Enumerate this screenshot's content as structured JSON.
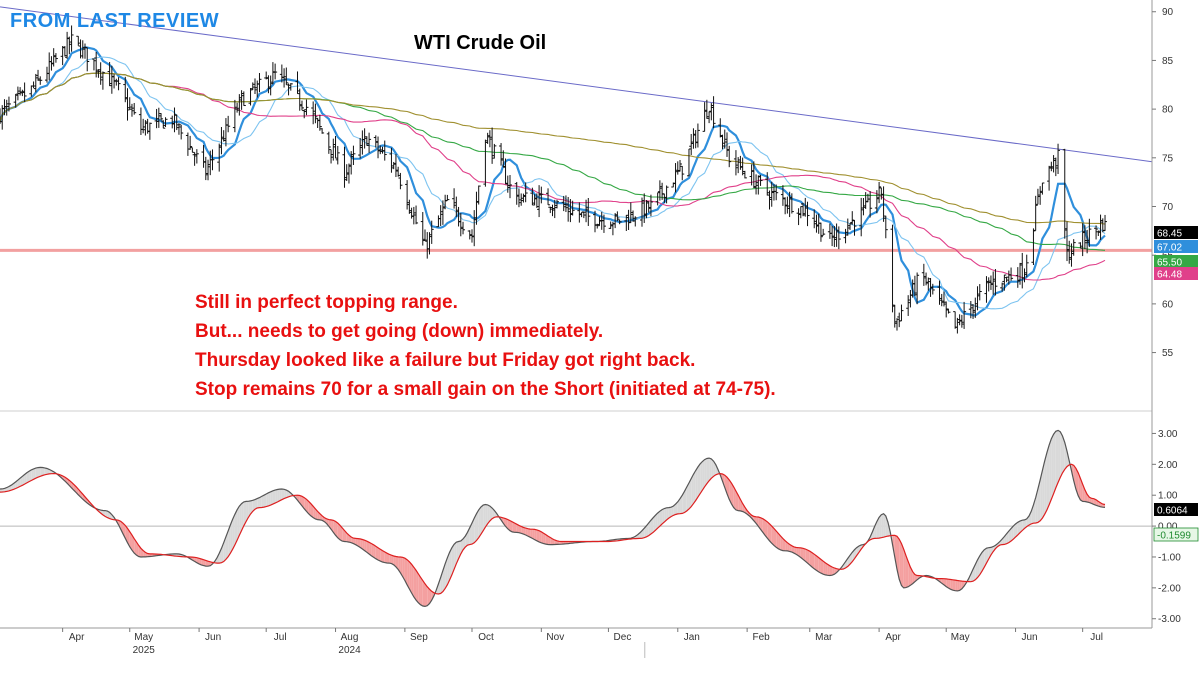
{
  "header": {
    "label": "FROM LAST REVIEW"
  },
  "commentary": [
    "Still in perfect topping range.",
    "But... needs to get going (down) immediately.",
    "Thursday looked like a failure but Friday got right back.",
    "Stop remains 70 for a small gain on the Short (initiated at 74-75)."
  ],
  "colors": {
    "header": "#1e88e5",
    "commentary": "#e81010",
    "bars": "#111111",
    "trendline": "#6a6ac8",
    "support": "#f2a0a0",
    "ma_fast": "#2f8fdc",
    "ma_light": "#7ec4f0",
    "ma_pink": "#e0408a",
    "ma_green": "#35a845",
    "ma_olive": "#a09030",
    "osc_fast": "#555555",
    "osc_slow": "#dd2020",
    "fill_up": "#d9d9d9",
    "fill_down": "#f4a0a0"
  },
  "chart_data": [
    {
      "type": "candlestick",
      "title": "WTI Crude Oil",
      "ylim": [
        49,
        91
      ],
      "y_ticks": [
        55,
        60,
        65,
        70,
        75,
        80,
        85,
        90
      ],
      "x_ticks": [
        "Apr",
        "May",
        "Jun",
        "Jul",
        "Aug",
        "Sep",
        "Oct",
        "Nov",
        "Dec",
        "Jan",
        "Feb",
        "Mar",
        "Apr",
        "May",
        "Jun",
        "Jul"
      ],
      "x_years": [
        {
          "label": "2024",
          "under": "Aug"
        },
        {
          "label": "2025",
          "under": "May"
        }
      ],
      "close_anchors": [
        {
          "date": "2024-03-04",
          "close": 79.5
        },
        {
          "date": "2024-03-18",
          "close": 82
        },
        {
          "date": "2024-04-05",
          "close": 87
        },
        {
          "date": "2024-04-12",
          "close": 85.5
        },
        {
          "date": "2024-04-26",
          "close": 82
        },
        {
          "date": "2024-05-06",
          "close": 78
        },
        {
          "date": "2024-05-20",
          "close": 79
        },
        {
          "date": "2024-06-04",
          "close": 73.5
        },
        {
          "date": "2024-06-20",
          "close": 81
        },
        {
          "date": "2024-07-05",
          "close": 83.5
        },
        {
          "date": "2024-07-20",
          "close": 80
        },
        {
          "date": "2024-08-05",
          "close": 73.5
        },
        {
          "date": "2024-08-15",
          "close": 77
        },
        {
          "date": "2024-08-28",
          "close": 74
        },
        {
          "date": "2024-09-10",
          "close": 65.8
        },
        {
          "date": "2024-09-20",
          "close": 70.5
        },
        {
          "date": "2024-10-01",
          "close": 67
        },
        {
          "date": "2024-10-07",
          "close": 77.5
        },
        {
          "date": "2024-10-20",
          "close": 71
        },
        {
          "date": "2024-11-05",
          "close": 70.5
        },
        {
          "date": "2024-11-20",
          "close": 69
        },
        {
          "date": "2024-12-05",
          "close": 68.5
        },
        {
          "date": "2024-12-20",
          "close": 70
        },
        {
          "date": "2025-01-03",
          "close": 74
        },
        {
          "date": "2025-01-15",
          "close": 80.5
        },
        {
          "date": "2025-01-24",
          "close": 75
        },
        {
          "date": "2025-02-10",
          "close": 71.5
        },
        {
          "date": "2025-02-28",
          "close": 69.5
        },
        {
          "date": "2025-03-10",
          "close": 66.5
        },
        {
          "date": "2025-03-25",
          "close": 69.5
        },
        {
          "date": "2025-04-02",
          "close": 71.5
        },
        {
          "date": "2025-04-08",
          "close": 58
        },
        {
          "date": "2025-04-20",
          "close": 63
        },
        {
          "date": "2025-05-05",
          "close": 57.5
        },
        {
          "date": "2025-05-20",
          "close": 62
        },
        {
          "date": "2025-06-05",
          "close": 63.5
        },
        {
          "date": "2025-06-13",
          "close": 73
        },
        {
          "date": "2025-06-20",
          "close": 75
        },
        {
          "date": "2025-06-24",
          "close": 65
        },
        {
          "date": "2025-07-03",
          "close": 67
        },
        {
          "date": "2025-07-11",
          "close": 68.45
        }
      ],
      "moving_averages": [
        {
          "color_key": "ma_fast",
          "last": 67.02,
          "period": 10
        },
        {
          "color_key": "ma_light",
          "last": 67.2,
          "period": 20
        },
        {
          "color_key": "ma_pink",
          "last": 64.48,
          "period": 55
        },
        {
          "color_key": "ma_green",
          "last": 65.5,
          "period": 100
        },
        {
          "color_key": "ma_olive",
          "last": 68.2,
          "period": 200
        }
      ],
      "trendline": {
        "start": {
          "date": "2024-03-04",
          "y": 90.5
        },
        "end": {
          "date": "2025-08-01",
          "y": 74.6
        }
      },
      "support_level": 65.5,
      "price_labels": [
        {
          "text": "68.45",
          "bg": "#000000",
          "fg": "#ffffff"
        },
        {
          "text": "67.02",
          "bg": "#2f8fdc",
          "fg": "#ffffff"
        },
        {
          "text": "65.50",
          "bg": "#35a845",
          "fg": "#ffffff"
        },
        {
          "text": "64.48",
          "bg": "#e0408a",
          "fg": "#ffffff"
        }
      ]
    },
    {
      "type": "line",
      "ylim": [
        -3.3,
        3.5
      ],
      "y_ticks": [
        "3.00",
        "2.00",
        "1.00",
        "0.00",
        "-1.00",
        "-2.00",
        "-3.00"
      ],
      "zero_line": 0,
      "series": [
        {
          "color_key": "osc_fast",
          "points": [
            [
              "2024-03-04",
              1.2
            ],
            [
              "2024-03-22",
              1.9
            ],
            [
              "2024-04-20",
              0.5
            ],
            [
              "2024-05-06",
              -1.0
            ],
            [
              "2024-05-22",
              -0.9
            ],
            [
              "2024-06-05",
              -1.3
            ],
            [
              "2024-06-22",
              0.8
            ],
            [
              "2024-07-08",
              1.2
            ],
            [
              "2024-07-25",
              0.2
            ],
            [
              "2024-08-05",
              -0.5
            ],
            [
              "2024-08-25",
              -1.2
            ],
            [
              "2024-09-10",
              -2.6
            ],
            [
              "2024-09-25",
              -0.5
            ],
            [
              "2024-10-07",
              0.7
            ],
            [
              "2024-10-20",
              -0.2
            ],
            [
              "2024-11-05",
              -0.6
            ],
            [
              "2024-11-25",
              -0.5
            ],
            [
              "2024-12-10",
              -0.4
            ],
            [
              "2024-12-28",
              0.6
            ],
            [
              "2025-01-15",
              2.2
            ],
            [
              "2025-01-28",
              0.5
            ],
            [
              "2025-02-18",
              -0.8
            ],
            [
              "2025-03-10",
              -1.6
            ],
            [
              "2025-03-25",
              -0.6
            ],
            [
              "2025-04-03",
              0.4
            ],
            [
              "2025-04-12",
              -2.0
            ],
            [
              "2025-04-22",
              -1.6
            ],
            [
              "2025-05-06",
              -2.1
            ],
            [
              "2025-05-20",
              -0.7
            ],
            [
              "2025-06-05",
              0.2
            ],
            [
              "2025-06-20",
              3.1
            ],
            [
              "2025-07-01",
              0.8
            ],
            [
              "2025-07-11",
              0.6064
            ]
          ]
        },
        {
          "color_key": "osc_slow",
          "points": [
            [
              "2024-03-04",
              1.1
            ],
            [
              "2024-03-28",
              1.7
            ],
            [
              "2024-04-25",
              0.2
            ],
            [
              "2024-05-10",
              -0.9
            ],
            [
              "2024-05-28",
              -1.0
            ],
            [
              "2024-06-10",
              -1.2
            ],
            [
              "2024-06-28",
              0.6
            ],
            [
              "2024-07-15",
              1.0
            ],
            [
              "2024-07-30",
              0.2
            ],
            [
              "2024-08-10",
              -0.4
            ],
            [
              "2024-08-30",
              -1.0
            ],
            [
              "2024-09-16",
              -2.2
            ],
            [
              "2024-09-30",
              -0.6
            ],
            [
              "2024-10-12",
              0.3
            ],
            [
              "2024-10-28",
              -0.1
            ],
            [
              "2024-11-10",
              -0.5
            ],
            [
              "2024-11-30",
              -0.5
            ],
            [
              "2024-12-15",
              -0.4
            ],
            [
              "2025-01-02",
              0.4
            ],
            [
              "2025-01-20",
              1.7
            ],
            [
              "2025-02-05",
              0.3
            ],
            [
              "2025-02-24",
              -0.7
            ],
            [
              "2025-03-15",
              -1.4
            ],
            [
              "2025-03-30",
              -0.4
            ],
            [
              "2025-04-08",
              -0.3
            ],
            [
              "2025-04-18",
              -1.6
            ],
            [
              "2025-04-28",
              -1.7
            ],
            [
              "2025-05-12",
              -1.8
            ],
            [
              "2025-05-26",
              -0.6
            ],
            [
              "2025-06-10",
              0.1
            ],
            [
              "2025-06-26",
              2.0
            ],
            [
              "2025-07-05",
              0.9
            ],
            [
              "2025-07-11",
              0.7
            ]
          ]
        }
      ],
      "value_labels": [
        {
          "text": "0.6064",
          "bg": "#000000",
          "fg": "#ffffff"
        },
        {
          "text": "-0.1599",
          "bg": "#e6f7e6",
          "fg": "#1f8a2f"
        }
      ]
    }
  ]
}
